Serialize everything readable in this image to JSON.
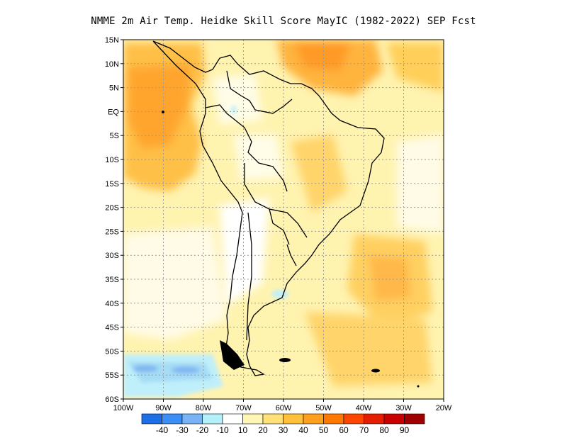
{
  "title": "NMME  2m Air Temp. Heidke Skill Score MayIC (1982-2022) SEP Fcst",
  "map": {
    "lon_range": [
      -100,
      -20
    ],
    "lat_range": [
      -60,
      15
    ],
    "lon_ticks": [
      {
        "value": -100,
        "label": "100W"
      },
      {
        "value": -90,
        "label": "90W"
      },
      {
        "value": -80,
        "label": "80W"
      },
      {
        "value": -70,
        "label": "70W"
      },
      {
        "value": -60,
        "label": "60W"
      },
      {
        "value": -50,
        "label": "50W"
      },
      {
        "value": -40,
        "label": "40W"
      },
      {
        "value": -30,
        "label": "30W"
      },
      {
        "value": -20,
        "label": "20W"
      }
    ],
    "lat_ticks": [
      {
        "value": 15,
        "label": "15N"
      },
      {
        "value": 10,
        "label": "10N"
      },
      {
        "value": 5,
        "label": "5N"
      },
      {
        "value": 0,
        "label": "EQ"
      },
      {
        "value": -5,
        "label": "5S"
      },
      {
        "value": -10,
        "label": "10S"
      },
      {
        "value": -15,
        "label": "15S"
      },
      {
        "value": -20,
        "label": "20S"
      },
      {
        "value": -25,
        "label": "25S"
      },
      {
        "value": -30,
        "label": "30S"
      },
      {
        "value": -35,
        "label": "35S"
      },
      {
        "value": -40,
        "label": "40S"
      },
      {
        "value": -45,
        "label": "45S"
      },
      {
        "value": -50,
        "label": "50S"
      },
      {
        "value": -55,
        "label": "55S"
      },
      {
        "value": -60,
        "label": "60S"
      }
    ],
    "grid": true
  },
  "colorbar": {
    "colors": [
      "#1e6ee6",
      "#3a8ef5",
      "#78b4f5",
      "#b4f0fa",
      "#ffffff",
      "#fff5b4",
      "#ffe178",
      "#ffc03c",
      "#ffa01e",
      "#ff7800",
      "#ff4600",
      "#e61e00",
      "#c80000",
      "#a00000"
    ],
    "labels": [
      "-40",
      "-30",
      "-20",
      "-10",
      "10",
      "20",
      "30",
      "40",
      "50",
      "60",
      "70",
      "80",
      "90"
    ]
  },
  "skill_regions": [
    {
      "level": "40",
      "lon": -95,
      "lat": 5
    },
    {
      "level": "40",
      "lon": -45,
      "lat": 12
    },
    {
      "level": "30",
      "lon": -80,
      "lat": -5
    },
    {
      "level": "30",
      "lon": -40,
      "lat": -30
    },
    {
      "level": "-10",
      "lon": -85,
      "lat": -54
    },
    {
      "level": "-20",
      "lon": -75,
      "lat": -54
    }
  ]
}
